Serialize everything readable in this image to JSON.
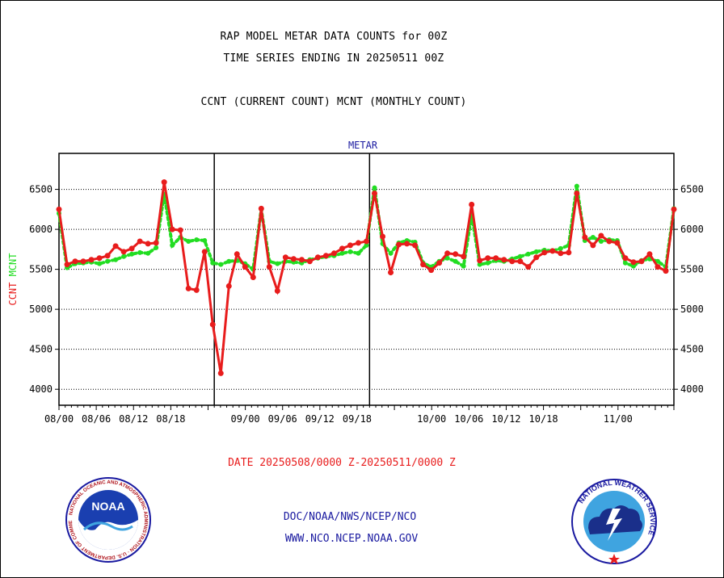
{
  "header": {
    "title_line1": "RAP MODEL METAR DATA COUNTS for 00Z",
    "title_line2": "TIME SERIES ENDING IN 20250511 00Z",
    "title_line3": "CCNT (CURRENT COUNT) MCNT (MONTHLY COUNT)"
  },
  "footer": {
    "date_range": "DATE 20250508/0000 Z-20250511/0000 Z",
    "org_line": "DOC/NOAA/NWS/NCEP/NCO",
    "url_line": "WWW.NCO.NCEP.NOAA.GOV"
  },
  "logos": {
    "left": "NOAA",
    "left_ring": "NATIONAL OCEANIC AND ATMOSPHERIC ADMINISTRATION · U.S. DEPARTMENT OF COMMERCE",
    "right_ring": "NATIONAL WEATHER SERVICE"
  },
  "colors": {
    "ccnt": "#e81c1c",
    "mcnt": "#22dd22",
    "footer_date": "#e81c1c",
    "footer_link": "#1a1aa0",
    "panel_title": "#1a1aa0"
  },
  "chart_data": {
    "type": "line",
    "panel_title": "METAR",
    "ylabel_left": "CCNT",
    "ylabel_right": "MCNT",
    "ylim": [
      3800,
      6950
    ],
    "yticks": [
      4000,
      4500,
      5000,
      5500,
      6000,
      6500
    ],
    "xlim": [
      0,
      99
    ],
    "xticks": [
      0,
      6,
      12,
      18,
      24,
      30,
      36,
      42,
      48,
      54,
      60,
      66,
      72,
      78,
      84,
      90,
      96,
      99
    ],
    "xtick_labels": [
      "08/00",
      "08/06",
      "08/12",
      "08/18",
      "",
      "09/00",
      "09/06",
      "09/12",
      "09/18",
      "",
      "10/00",
      "10/06",
      "10/12",
      "10/18",
      "",
      "11/00",
      "",
      ""
    ],
    "grid": true,
    "series": [
      {
        "name": "CCNT",
        "color": "#e81c1c",
        "values": [
          6250,
          5560,
          5600,
          5600,
          5620,
          5640,
          5670,
          5790,
          5720,
          5760,
          5850,
          5820,
          5830,
          6590,
          6000,
          5990,
          5260,
          5240,
          5720,
          4810,
          4200,
          5290,
          5690,
          5530,
          5400,
          6260,
          5530,
          5230,
          5650,
          5630,
          5620,
          5600,
          5650,
          5670,
          5700,
          5760,
          5800,
          5830,
          5850,
          6450,
          5910,
          5460,
          5810,
          5820,
          5800,
          5560,
          5490,
          5580,
          5700,
          5690,
          5660,
          6310,
          5610,
          5640,
          5640,
          5620,
          5600,
          5600,
          5530,
          5650,
          5710,
          5730,
          5700,
          5710,
          6450,
          5900,
          5800,
          5920,
          5850,
          5830,
          5640,
          5590,
          5600,
          5690,
          5530,
          5480,
          6250
        ]
      },
      {
        "name": "MCNT",
        "color": "#22dd22",
        "values": [
          6200,
          5520,
          5570,
          5580,
          5590,
          5570,
          5600,
          5620,
          5660,
          5690,
          5710,
          5700,
          5770,
          6440,
          5800,
          5900,
          5850,
          5870,
          5860,
          5580,
          5560,
          5600,
          5610,
          5570,
          5500,
          6250,
          5600,
          5570,
          5600,
          5590,
          5580,
          5620,
          5640,
          5660,
          5670,
          5700,
          5720,
          5700,
          5800,
          6520,
          5820,
          5700,
          5830,
          5860,
          5840,
          5580,
          5530,
          5600,
          5640,
          5600,
          5540,
          6180,
          5560,
          5580,
          5610,
          5600,
          5630,
          5660,
          5690,
          5720,
          5740,
          5730,
          5760,
          5800,
          6540,
          5860,
          5900,
          5850,
          5870,
          5860,
          5580,
          5540,
          5610,
          5630,
          5600,
          5530,
          6260
        ]
      }
    ]
  }
}
